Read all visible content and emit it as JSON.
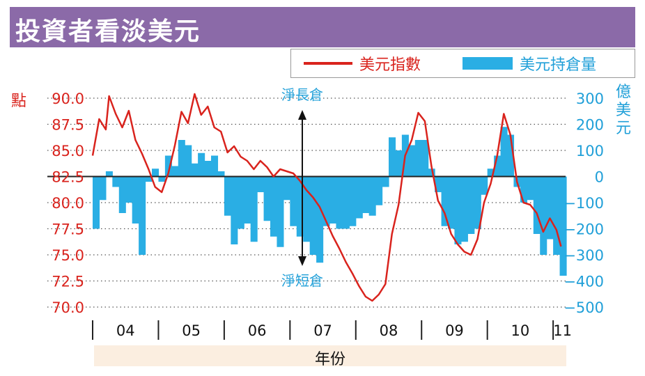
{
  "title": "投資者看淡美元",
  "legend": {
    "dollar_index": "美元指數",
    "dollar_positions": "美元持倉量"
  },
  "units": {
    "left": "點",
    "right": [
      "億",
      "美",
      "元"
    ]
  },
  "annotations": {
    "net_long": "淨長倉",
    "net_short": "淨短倉"
  },
  "colors": {
    "title_bg": "#8b6aa8",
    "index_line": "#d9231d",
    "position_bars": "#2aaee4",
    "left_axis_text": "#d9231d",
    "right_axis_text": "#1f9fd8"
  },
  "chart_data": {
    "type": "line+bar",
    "title": "投資者看淡美元",
    "xlabel": "年份",
    "x_ticks": [
      "04",
      "05",
      "06",
      "07",
      "08",
      "09",
      "10",
      "11"
    ],
    "left_axis": {
      "label": "點",
      "ticks": [
        "90.0",
        "87.5",
        "85.0",
        "82.5",
        "80.0",
        "77.5",
        "75.0",
        "72.5",
        "70.0"
      ],
      "ylim": [
        70.0,
        90.0
      ]
    },
    "right_axis": {
      "label": "億美元",
      "ticks": [
        "300",
        "200",
        "100",
        "0",
        "−100",
        "−200",
        "−300",
        "−400",
        "−500"
      ],
      "ylim": [
        -500,
        300
      ]
    },
    "grid": "horizontal dotted",
    "series": [
      {
        "name": "美元指數",
        "kind": "line",
        "axis": "left",
        "x": [
          2004.0,
          2004.1,
          2004.2,
          2004.25,
          2004.35,
          2004.45,
          2004.55,
          2004.65,
          2004.75,
          2004.85,
          2004.95,
          2005.05,
          2005.15,
          2005.25,
          2005.35,
          2005.45,
          2005.55,
          2005.65,
          2005.75,
          2005.85,
          2005.95,
          2006.05,
          2006.15,
          2006.25,
          2006.35,
          2006.45,
          2006.55,
          2006.65,
          2006.75,
          2006.85,
          2006.95,
          2007.05,
          2007.15,
          2007.25,
          2007.35,
          2007.45,
          2007.55,
          2007.65,
          2007.75,
          2007.85,
          2007.95,
          2008.05,
          2008.15,
          2008.25,
          2008.35,
          2008.45,
          2008.55,
          2008.65,
          2008.75,
          2008.85,
          2008.95,
          2009.05,
          2009.15,
          2009.25,
          2009.35,
          2009.45,
          2009.55,
          2009.65,
          2009.75,
          2009.85,
          2009.95,
          2010.05,
          2010.15,
          2010.25,
          2010.35,
          2010.45,
          2010.55,
          2010.65,
          2010.75,
          2010.85,
          2010.95,
          2011.05,
          2011.12
        ],
        "values": [
          84.5,
          88.0,
          87.0,
          90.2,
          88.5,
          87.2,
          88.8,
          86.0,
          84.7,
          83.2,
          81.5,
          81.0,
          82.8,
          85.5,
          88.7,
          87.6,
          90.4,
          88.4,
          89.2,
          87.2,
          86.8,
          84.8,
          85.4,
          84.4,
          84.0,
          83.2,
          84.0,
          83.4,
          82.5,
          83.2,
          83.0,
          82.8,
          82.1,
          81.2,
          80.5,
          79.6,
          78.2,
          76.8,
          75.6,
          74.3,
          73.2,
          72.0,
          71.0,
          70.6,
          71.2,
          72.2,
          77.0,
          79.8,
          84.5,
          86.0,
          88.6,
          87.8,
          83.5,
          80.2,
          79.0,
          77.0,
          76.0,
          75.3,
          75.0,
          76.5,
          80.0,
          81.8,
          84.5,
          88.5,
          86.5,
          82.0,
          80.0,
          79.8,
          79.0,
          77.2,
          78.5,
          77.4,
          75.8
        ]
      },
      {
        "name": "美元持倉量",
        "kind": "bar",
        "axis": "right",
        "x": [
          2004.0,
          2004.1,
          2004.2,
          2004.3,
          2004.4,
          2004.5,
          2004.6,
          2004.7,
          2004.8,
          2004.9,
          2005.0,
          2005.1,
          2005.2,
          2005.3,
          2005.4,
          2005.5,
          2005.6,
          2005.7,
          2005.8,
          2005.9,
          2006.0,
          2006.1,
          2006.2,
          2006.3,
          2006.4,
          2006.5,
          2006.6,
          2006.7,
          2006.8,
          2006.9,
          2007.0,
          2007.1,
          2007.2,
          2007.3,
          2007.4,
          2007.5,
          2007.6,
          2007.7,
          2007.8,
          2007.9,
          2008.0,
          2008.1,
          2008.2,
          2008.3,
          2008.4,
          2008.5,
          2008.6,
          2008.7,
          2008.8,
          2008.9,
          2009.0,
          2009.1,
          2009.2,
          2009.3,
          2009.4,
          2009.5,
          2009.6,
          2009.7,
          2009.8,
          2009.9,
          2010.0,
          2010.1,
          2010.2,
          2010.3,
          2010.4,
          2010.5,
          2010.6,
          2010.7,
          2010.8,
          2010.9,
          2011.0,
          2011.1
        ],
        "values": [
          -200,
          -90,
          20,
          -40,
          -140,
          -100,
          -180,
          -300,
          -20,
          30,
          -20,
          80,
          40,
          140,
          120,
          50,
          90,
          60,
          80,
          20,
          -150,
          -260,
          -200,
          -180,
          -250,
          -60,
          -170,
          -230,
          -270,
          -90,
          -190,
          -230,
          -250,
          -300,
          -330,
          -190,
          -180,
          -200,
          -200,
          -190,
          -160,
          -140,
          -150,
          -110,
          -40,
          150,
          100,
          160,
          120,
          140,
          140,
          30,
          -60,
          -190,
          -200,
          -260,
          -250,
          -220,
          -200,
          -70,
          30,
          80,
          190,
          160,
          -40,
          -100,
          -90,
          -220,
          -300,
          -240,
          -300,
          -380
        ]
      }
    ],
    "annotations": [
      "淨長倉",
      "淨短倉"
    ]
  }
}
